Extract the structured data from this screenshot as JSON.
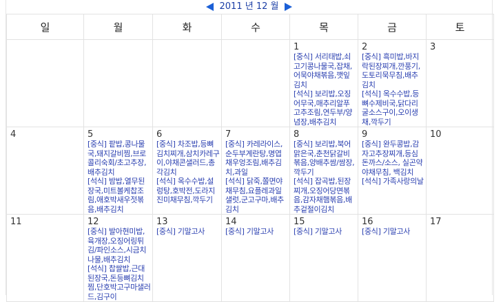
{
  "header": {
    "title": "2011 년 12 월",
    "prev_label": "◀",
    "next_label": "▶"
  },
  "weekdays": [
    "일",
    "월",
    "화",
    "수",
    "목",
    "금",
    "토"
  ],
  "weeks": [
    [
      {
        "day": "",
        "menu": ""
      },
      {
        "day": "",
        "menu": ""
      },
      {
        "day": "",
        "menu": ""
      },
      {
        "day": "",
        "menu": ""
      },
      {
        "day": "1",
        "menu": "[중식] 서리태밥,쇠고기콩나물국,잡채,어묵야채볶음,깻잎김치\n[석식] 보리밥,오징어무국,매추리알푸고추조림,연두부/양념장,배추김치"
      },
      {
        "day": "2",
        "menu": "[중식] 흑미밥,바지락된장찌개,깐풍기,도토리묵무침,배추김치\n[석식] 옥수수밥,등뼈수제비국,닭다리굴소스구이,오이생채,깍두기"
      },
      {
        "day": "3",
        "menu": ""
      }
    ],
    [
      {
        "day": "4",
        "menu": ""
      },
      {
        "day": "5",
        "menu": "[중식] 팥밥,콩나물국,돼지갈비찜,브로콜리숙회/초고추장,배추김치\n[석식] 밤밥,열무된장국,미트볼케찹조림,애호박새우젓볶음,배추김치"
      },
      {
        "day": "6",
        "menu": "[중식] 차조밥,등뼈김치찌개,삼치카레구이,야채콘샐러드,총각김치\n[석식] 옥수수밥,설렁탕,호박전,도라지진미채무침,깍두기"
      },
      {
        "day": "7",
        "menu": "[중식] 카레라이스,순두부계란탕,명엽채우엉조림,배추김치,과일\n[석식] 닭죽,쫄면야채무침,요플레과일샐럿,군고구마,배추김치"
      },
      {
        "day": "8",
        "menu": "[중식] 보리밥,북어맑은국,춘천닭갈비볶음,양배추쌈/쌈장,깍두기\n[석식] 잡곡밥,된장찌개,오징어당면볶음,감자채햄볶음,배추겉절이김치"
      },
      {
        "day": "9",
        "menu": "[중식] 완두콩밥,감자고추장찌개,등심돈까스/소스, 실곤약야채무침, 백김치\n[석식] 가족사랑의날"
      },
      {
        "day": "10",
        "menu": ""
      }
    ],
    [
      {
        "day": "11",
        "menu": ""
      },
      {
        "day": "12",
        "menu": "[중식] 발아현미밥,육개장,오징어링튀김/파인소스,시금치나물,배추김치\n[석식] 찹쌀밥,근대된장국,돈등뼈김치찜,단호박고구마샐러드,김구이"
      },
      {
        "day": "13",
        "menu": "[중식] 기말고사"
      },
      {
        "day": "14",
        "menu": "[중식] 기말고사"
      },
      {
        "day": "15",
        "menu": "[중식] 기말고사"
      },
      {
        "day": "16",
        "menu": "[중식] 기말고사"
      },
      {
        "day": "17",
        "menu": ""
      }
    ]
  ]
}
